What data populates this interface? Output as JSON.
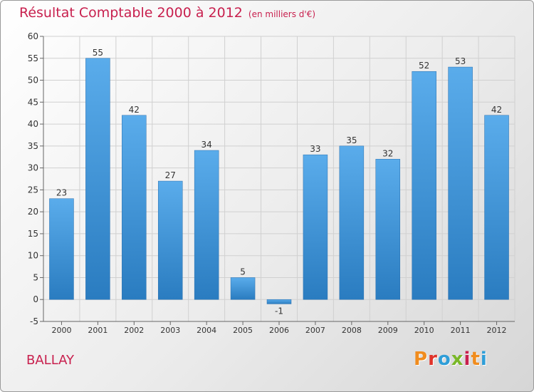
{
  "header": {
    "title": "Résultat Comptable 2000 à 2012",
    "unit": "(en milliers d'€)"
  },
  "footer": {
    "commune": "BALLAY",
    "logo": "Proxiti",
    "logo_colors": [
      "#f08c1e",
      "#e0332a",
      "#2f9ed8",
      "#7ab829",
      "#c8204e",
      "#f08c1e",
      "#2f9ed8"
    ]
  },
  "colors": {
    "title": "#c8204e",
    "bar_top": "#5aaceb",
    "bar_bottom": "#2a7cc0",
    "grid": "#d0d0d0",
    "axis": "#666666"
  },
  "chart_data": {
    "type": "bar",
    "title": "Résultat Comptable 2000 à 2012",
    "xlabel": "",
    "ylabel": "",
    "categories": [
      "2000",
      "2001",
      "2002",
      "2003",
      "2004",
      "2005",
      "2006",
      "2007",
      "2008",
      "2009",
      "2010",
      "2011",
      "2012"
    ],
    "values": [
      23,
      55,
      42,
      27,
      34,
      5,
      -1,
      33,
      35,
      32,
      52,
      53,
      42
    ],
    "ylim": [
      -5,
      60
    ],
    "yticks": [
      -5,
      0,
      5,
      10,
      15,
      20,
      25,
      30,
      35,
      40,
      45,
      50,
      55,
      60
    ],
    "grid": true
  }
}
